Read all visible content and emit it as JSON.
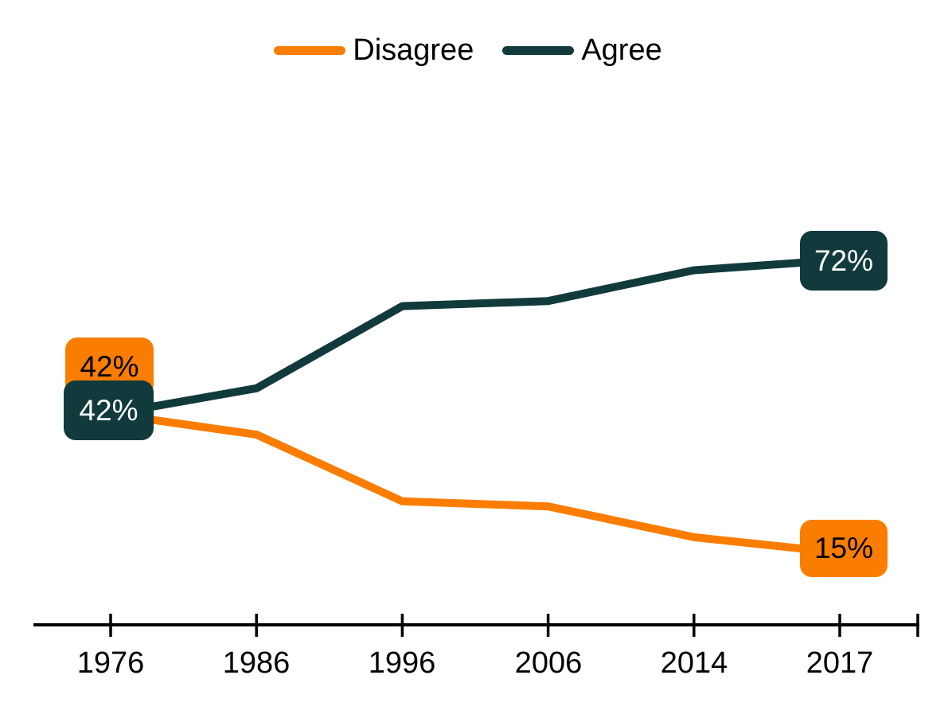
{
  "legend": {
    "items": [
      {
        "label": "Disagree",
        "color": "#FA7D00"
      },
      {
        "label": "Agree",
        "color": "#113A3C"
      }
    ]
  },
  "chart_data": {
    "type": "line",
    "categories": [
      "1976",
      "1986",
      "1996",
      "2006",
      "2014",
      "2017"
    ],
    "series": [
      {
        "name": "Disagree",
        "color": "#FA7D00",
        "label_text_color": "#000000",
        "values": [
          42,
          38,
          25,
          24,
          18,
          15
        ]
      },
      {
        "name": "Agree",
        "color": "#113A3C",
        "label_text_color": "#FFFFFF",
        "values": [
          42,
          47,
          63,
          64,
          70,
          72
        ]
      }
    ],
    "point_labels": [
      {
        "id": "disagree-1976",
        "series": "Disagree",
        "category": "1976",
        "text": "42%"
      },
      {
        "id": "agree-1976",
        "series": "Agree",
        "category": "1976",
        "text": "42%"
      },
      {
        "id": "agree-2017",
        "series": "Agree",
        "category": "2017",
        "text": "72%"
      },
      {
        "id": "disagree-2017",
        "series": "Disagree",
        "category": "2017",
        "text": "15%"
      }
    ],
    "legend_position": "top",
    "grid": false,
    "y_axis_shown": false,
    "axis_color": "#000000",
    "ylim": [
      0,
      100
    ]
  }
}
